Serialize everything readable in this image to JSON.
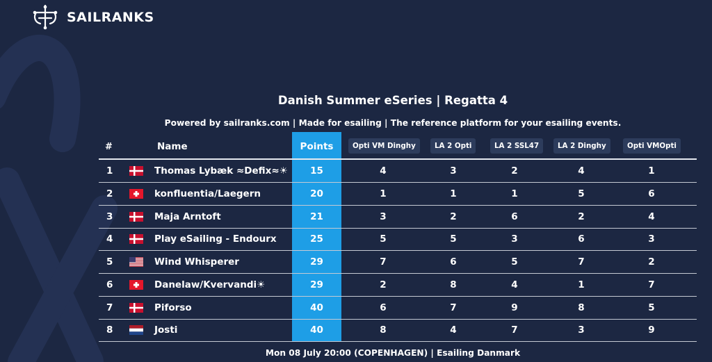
{
  "brand": {
    "name": "SAILRANKS"
  },
  "event": {
    "title": "Danish Summer eSeries | Regatta 4",
    "subtitle": "Powered by sailranks.com | Made for esailing | The reference platform for your esailing events.",
    "footer": "Mon 08 July 20:00 (COPENHAGEN) | Esailing Danmark"
  },
  "table": {
    "headers": {
      "rank": "#",
      "name": "Name",
      "points": "Points"
    },
    "races": [
      "Opti VM Dinghy",
      "LA 2 Opti",
      "LA 2 SSL47",
      "LA 2 Dinghy",
      "Opti VMOpti"
    ],
    "rows": [
      {
        "rank": "1",
        "flag": "denmark-flag",
        "name": "Thomas Lybæk ≈Defix≈☀",
        "points": "15",
        "results": [
          "4",
          "3",
          "2",
          "4",
          "1"
        ]
      },
      {
        "rank": "2",
        "flag": "switzerland-flag",
        "name": "konfluentia/Laegern",
        "points": "20",
        "results": [
          "1",
          "1",
          "1",
          "5",
          "6"
        ]
      },
      {
        "rank": "3",
        "flag": "denmark-flag",
        "name": "Maja Arntoft",
        "points": "21",
        "results": [
          "3",
          "2",
          "6",
          "2",
          "4"
        ]
      },
      {
        "rank": "4",
        "flag": "denmark-flag",
        "name": "Play eSailing - Endourx",
        "points": "25",
        "results": [
          "5",
          "5",
          "3",
          "6",
          "3"
        ]
      },
      {
        "rank": "5",
        "flag": "usa-flag",
        "name": "Wind Whisperer",
        "points": "29",
        "results": [
          "7",
          "6",
          "5",
          "7",
          "2"
        ]
      },
      {
        "rank": "6",
        "flag": "switzerland-flag",
        "name": "Danelaw/Kvervandi☀",
        "points": "29",
        "results": [
          "2",
          "8",
          "4",
          "1",
          "7"
        ]
      },
      {
        "rank": "7",
        "flag": "denmark-flag",
        "name": "Piforso",
        "points": "40",
        "results": [
          "6",
          "7",
          "9",
          "8",
          "5"
        ]
      },
      {
        "rank": "8",
        "flag": "netherlands-flag",
        "name": "Josti",
        "points": "40",
        "results": [
          "8",
          "4",
          "7",
          "3",
          "9"
        ]
      }
    ]
  },
  "colors": {
    "background": "#1c2742",
    "points_column": "#1e9ee6",
    "race_pill": "#2d3c5c",
    "text": "#ffffff"
  }
}
